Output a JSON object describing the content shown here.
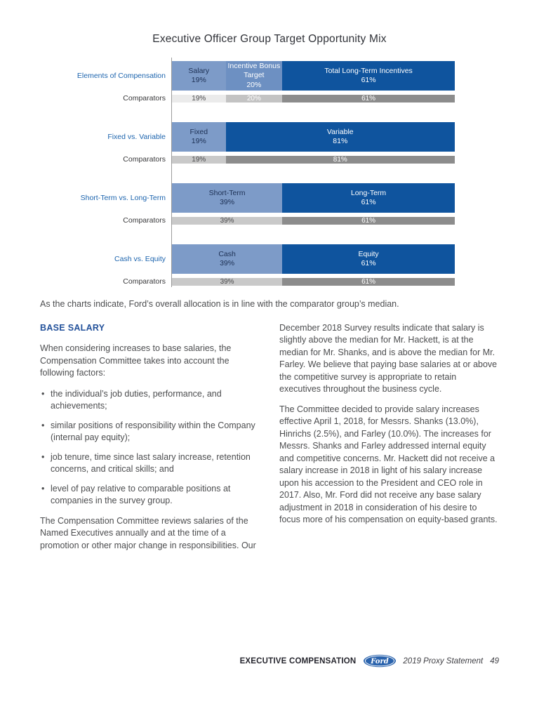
{
  "page_title": "Executive Officer Group Target Opportunity Mix",
  "chart_data": {
    "type": "bar",
    "orientation": "horizontal-stacked",
    "title": "Executive Officer Group Target Opportunity Mix",
    "xlim": [
      0,
      100
    ],
    "grid": false,
    "groups": [
      {
        "id": "elements-of-compensation",
        "label": "Elements of Compensation",
        "comparators_label": "Comparators",
        "segments": [
          {
            "label": "Salary",
            "pct": "19%",
            "value": 19,
            "fill": "#7d9bc8",
            "text": "dark"
          },
          {
            "label": "Incentive Bonus Target",
            "pct": "20%",
            "value": 20,
            "fill": "#6d90c2",
            "text": "white"
          },
          {
            "label": "Total Long-Term Incentives",
            "pct": "61%",
            "value": 61,
            "fill": "#0f549e",
            "text": "white"
          }
        ],
        "comparator_segments": [
          {
            "pct": "19%",
            "value": 19,
            "fill": "#ebebeb",
            "text": "dark"
          },
          {
            "pct": "20%",
            "value": 20,
            "fill": "#c3c3c3",
            "text": "white"
          },
          {
            "pct": "61%",
            "value": 61,
            "fill": "#8c8c8c",
            "text": "white"
          }
        ]
      },
      {
        "id": "fixed-vs-variable",
        "label": "Fixed vs. Variable",
        "comparators_label": "Comparators",
        "segments": [
          {
            "label": "Fixed",
            "pct": "19%",
            "value": 19,
            "fill": "#7d9bc8",
            "text": "dark"
          },
          {
            "label": "Variable",
            "pct": "81%",
            "value": 81,
            "fill": "#0f549e",
            "text": "white"
          }
        ],
        "comparator_segments": [
          {
            "pct": "19%",
            "value": 19,
            "fill": "#c9c9c9",
            "text": "dark"
          },
          {
            "pct": "81%",
            "value": 81,
            "fill": "#8c8c8c",
            "text": "white"
          }
        ]
      },
      {
        "id": "short-term-vs-long-term",
        "label": "Short-Term vs. Long-Term",
        "comparators_label": "Comparators",
        "segments": [
          {
            "label": "Short-Term",
            "pct": "39%",
            "value": 39,
            "fill": "#7d9bc8",
            "text": "dark"
          },
          {
            "label": "Long-Term",
            "pct": "61%",
            "value": 61,
            "fill": "#0f549e",
            "text": "white"
          }
        ],
        "comparator_segments": [
          {
            "pct": "39%",
            "value": 39,
            "fill": "#c9c9c9",
            "text": "dark"
          },
          {
            "pct": "61%",
            "value": 61,
            "fill": "#8c8c8c",
            "text": "white"
          }
        ]
      },
      {
        "id": "cash-vs-equity",
        "label": "Cash vs. Equity",
        "comparators_label": "Comparators",
        "segments": [
          {
            "label": "Cash",
            "pct": "39%",
            "value": 39,
            "fill": "#7d9bc8",
            "text": "dark"
          },
          {
            "label": "Equity",
            "pct": "61%",
            "value": 61,
            "fill": "#0f549e",
            "text": "white"
          }
        ],
        "comparator_segments": [
          {
            "pct": "39%",
            "value": 39,
            "fill": "#c9c9c9",
            "text": "dark"
          },
          {
            "pct": "61%",
            "value": 61,
            "fill": "#8c8c8c",
            "text": "white"
          }
        ]
      }
    ]
  },
  "intro": {
    "text": "As the charts indicate, Ford’s overall allocation is in line with the comparator group’s median."
  },
  "base_salary": {
    "heading": "BASE SALARY",
    "para1": "When considering increases to base salaries, the Compensation Committee takes into account the following factors:",
    "bullets": [
      "the individual’s job duties, performance, and achievements;",
      "similar positions of responsibility within the Company (internal pay equity);",
      "job tenure, time since last salary increase, retention concerns, and critical skills; and",
      "level of pay relative to comparable positions at companies in the survey group."
    ],
    "para2": "The Compensation Committee reviews salaries of the Named Executives annually and at the time of a promotion or other major change in responsibilities. Our"
  },
  "right_column": {
    "para1": "December 2018 Survey results indicate that salary is slightly above the median for Mr. Hackett, is at the median for Mr. Shanks, and is above the median for Mr. Farley. We believe that paying base salaries at or above the competitive survey is appropriate to retain executives throughout the business cycle.",
    "para2": "The Committee decided to provide salary increases effective April 1, 2018, for Messrs. Shanks (13.0%), Hinrichs (2.5%), and Farley (10.0%). The increases for Messrs. Shanks and Farley addressed internal equity and competitive concerns. Mr. Hackett did not receive a salary increase in 2018 in light of his salary increase upon his accession to the President and CEO role in 2017. Also, Mr. Ford did not receive any base salary adjustment in 2018 in consideration of his desire to focus more of his compensation on equity-based grants."
  },
  "footer": {
    "section": "EXECUTIVE COMPENSATION",
    "logo_text": "Ford",
    "statement": "2019 Proxy Statement",
    "page_number": "49"
  },
  "colors": {
    "bar_light_blue": "#7d9bc8",
    "bar_mid_blue": "#6d90c2",
    "bar_dark_blue": "#0f549e",
    "comparator_very_light_gray": "#ebebeb",
    "comparator_light_gray": "#c9c9c9",
    "comparator_mid_gray": "#c3c3c3",
    "comparator_dark_gray": "#8c8c8c",
    "label_blue": "#1c64ae",
    "heading_navy": "#24529b",
    "ford_logo_blue": "#2a63ad"
  }
}
